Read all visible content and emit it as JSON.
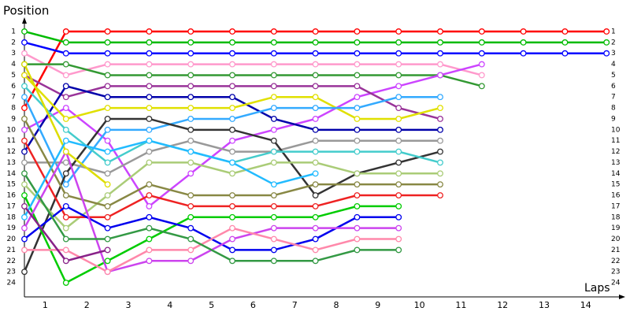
{
  "chart_data": {
    "type": "line",
    "title": "Position",
    "x_label": "Laps",
    "x": [
      0,
      1,
      2,
      3,
      4,
      5,
      6,
      7,
      8,
      9,
      10,
      11,
      12,
      13,
      14
    ],
    "xlim": [
      0,
      14.5
    ],
    "xticks": [
      {
        "value": 0.5,
        "label": "1"
      },
      {
        "value": 1.5,
        "label": "2"
      },
      {
        "value": 2.5,
        "label": "3"
      },
      {
        "value": 3.5,
        "label": "4"
      },
      {
        "value": 4.5,
        "label": "5"
      },
      {
        "value": 5.5,
        "label": "6"
      },
      {
        "value": 6.5,
        "label": "7"
      },
      {
        "value": 7.5,
        "label": "8"
      },
      {
        "value": 8.5,
        "label": "9"
      },
      {
        "value": 9.5,
        "label": "10"
      },
      {
        "value": 10.5,
        "label": "11"
      },
      {
        "value": 11.5,
        "label": "12"
      },
      {
        "value": 12.5,
        "label": "13"
      },
      {
        "value": 13.5,
        "label": "14"
      }
    ],
    "ylim": [
      0,
      25
    ],
    "y_inverted": true,
    "yticks": [
      1,
      2,
      3,
      4,
      5,
      6,
      7,
      8,
      9,
      10,
      11,
      12,
      13,
      14,
      15,
      16,
      17,
      18,
      19,
      20,
      21,
      22,
      23,
      24
    ],
    "series": [
      {
        "color": "#ff0000",
        "values": [
          8,
          1,
          1,
          1,
          1,
          1,
          1,
          1,
          1,
          1,
          1,
          1,
          1,
          1,
          1
        ]
      },
      {
        "color": "#00bb00",
        "values": [
          1,
          2,
          2,
          2,
          2,
          2,
          2,
          2,
          2,
          2,
          2,
          2,
          2,
          2,
          2
        ]
      },
      {
        "color": "#0000ff",
        "values": [
          2,
          3,
          3,
          3,
          3,
          3,
          3,
          3,
          3,
          3,
          3,
          3,
          3,
          3,
          3
        ]
      },
      {
        "color": "#ff99cc",
        "values": [
          3,
          5,
          4,
          4,
          4,
          4,
          4,
          4,
          4,
          4,
          4,
          5,
          null,
          null,
          null
        ]
      },
      {
        "color": "#339933",
        "values": [
          4,
          4,
          5,
          5,
          5,
          5,
          5,
          5,
          5,
          5,
          5,
          6,
          null,
          null,
          null
        ]
      },
      {
        "color": "#cc44ff",
        "values": [
          10,
          8,
          11,
          17,
          14,
          11,
          10,
          9,
          7,
          6,
          5,
          4,
          null,
          null,
          null
        ]
      },
      {
        "color": "#993399",
        "values": [
          5,
          7,
          6,
          6,
          6,
          6,
          6,
          6,
          6,
          8,
          9,
          null,
          null,
          null,
          null
        ]
      },
      {
        "color": "#0000aa",
        "values": [
          12,
          6,
          7,
          7,
          7,
          7,
          9,
          10,
          10,
          10,
          10,
          null,
          null,
          null,
          null
        ]
      },
      {
        "color": "#e0e000",
        "values": [
          5,
          9,
          8,
          8,
          8,
          8,
          7,
          7,
          9,
          9,
          8,
          null,
          null,
          null,
          null
        ]
      },
      {
        "color": "#33aaff",
        "values": [
          7,
          15,
          10,
          10,
          9,
          9,
          8,
          8,
          8,
          7,
          7,
          null,
          null,
          null,
          null
        ]
      },
      {
        "color": "#999999",
        "values": [
          13,
          13,
          14,
          12,
          11,
          12,
          12,
          11,
          11,
          11,
          11,
          null,
          null,
          null,
          null
        ]
      },
      {
        "color": "#333333",
        "values": [
          23,
          14,
          9,
          9,
          10,
          10,
          11,
          16,
          14,
          13,
          12,
          null,
          null,
          null,
          null
        ]
      },
      {
        "color": "#44cccc",
        "values": [
          6,
          10,
          13,
          11,
          12,
          13,
          12,
          12,
          12,
          12,
          13,
          null,
          null,
          null,
          null
        ]
      },
      {
        "color": "#aacc77",
        "values": [
          15,
          19,
          16,
          13,
          13,
          14,
          13,
          13,
          14,
          14,
          14,
          null,
          null,
          null,
          null
        ]
      },
      {
        "color": "#888844",
        "values": [
          9,
          16,
          17,
          15,
          16,
          16,
          16,
          15,
          15,
          15,
          15,
          null,
          null,
          null,
          null
        ]
      },
      {
        "color": "#ee2222",
        "values": [
          11,
          18,
          18,
          16,
          17,
          17,
          17,
          17,
          16,
          16,
          16,
          null,
          null,
          null,
          null
        ]
      },
      {
        "color": "#00cc00",
        "values": [
          16,
          24,
          22,
          20,
          18,
          18,
          18,
          18,
          17,
          17,
          null,
          null,
          null,
          null,
          null
        ]
      },
      {
        "color": "#0000ee",
        "values": [
          20,
          17,
          19,
          18,
          19,
          21,
          21,
          20,
          18,
          18,
          null,
          null,
          null,
          null,
          null
        ]
      },
      {
        "color": "#cc44ee",
        "values": [
          19,
          12,
          23,
          22,
          22,
          20,
          19,
          19,
          19,
          19,
          null,
          null,
          null,
          null,
          null
        ]
      },
      {
        "color": "#ff88aa",
        "values": [
          21,
          21,
          23,
          21,
          21,
          19,
          20,
          21,
          20,
          20,
          null,
          null,
          null,
          null,
          null
        ]
      },
      {
        "color": "#339944",
        "values": [
          14,
          20,
          20,
          19,
          20,
          22,
          22,
          22,
          21,
          21,
          null,
          null,
          null,
          null,
          null
        ]
      },
      {
        "color": "#dddd00",
        "values": [
          4,
          12,
          15,
          null,
          null,
          null,
          null,
          null,
          null,
          null,
          null,
          null,
          null,
          null,
          null
        ]
      },
      {
        "color": "#22bbff",
        "values": [
          18,
          11,
          12,
          11,
          12,
          13,
          15,
          14,
          null,
          null,
          null,
          null,
          null,
          null,
          null
        ]
      },
      {
        "color": "#882288",
        "values": [
          17,
          22,
          21,
          null,
          null,
          null,
          null,
          null,
          null,
          null,
          null,
          null,
          null,
          null,
          null
        ]
      }
    ]
  }
}
